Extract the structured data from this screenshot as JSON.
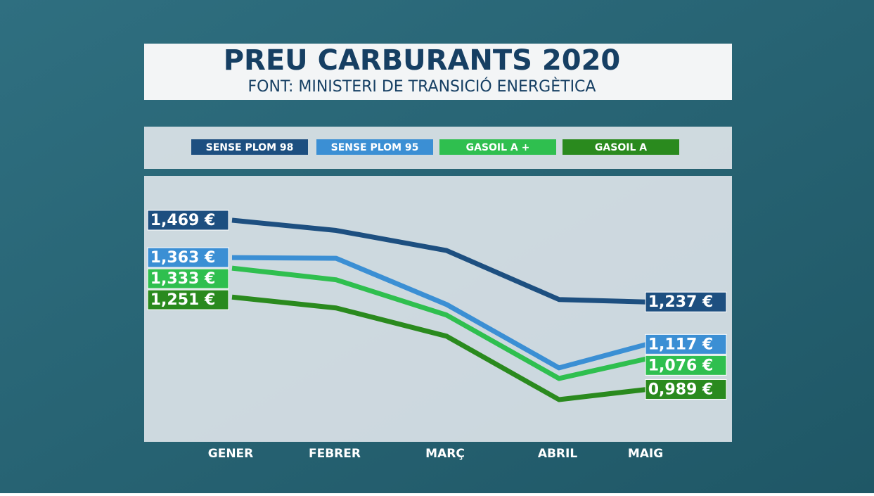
{
  "chart_data": {
    "type": "line",
    "title": "PREU CARBURANTS 2020",
    "subtitle": "FONT: MINISTERI DE TRANSICIÓ ENERGÈTICA",
    "categories": [
      "GENER",
      "FEBRER",
      "MARÇ",
      "ABRIL",
      "MAIG"
    ],
    "series": [
      {
        "name": "SENSE PLOM 98",
        "color": "#1d4f80",
        "values": [
          1.469,
          1.44,
          1.383,
          1.244,
          1.237
        ],
        "value_labels": [
          "1,469 €",
          null,
          null,
          null,
          "1,237 €"
        ]
      },
      {
        "name": "SENSE PLOM 95",
        "color": "#3b8fd4",
        "values": [
          1.363,
          1.361,
          1.23,
          1.05,
          1.117
        ],
        "value_labels": [
          "1,363 €",
          null,
          null,
          null,
          "1,117 €"
        ]
      },
      {
        "name": "GASOIL A +",
        "color": "#2fbf4f",
        "values": [
          1.333,
          1.3,
          1.2,
          1.02,
          1.076
        ],
        "value_labels": [
          "1,333 €",
          null,
          null,
          null,
          "1,076 €"
        ]
      },
      {
        "name": "GASOIL A",
        "color": "#2a8a1e",
        "values": [
          1.251,
          1.22,
          1.14,
          0.96,
          0.989
        ],
        "value_labels": [
          "1,251 €",
          null,
          null,
          null,
          "0,989 €"
        ]
      }
    ]
  }
}
